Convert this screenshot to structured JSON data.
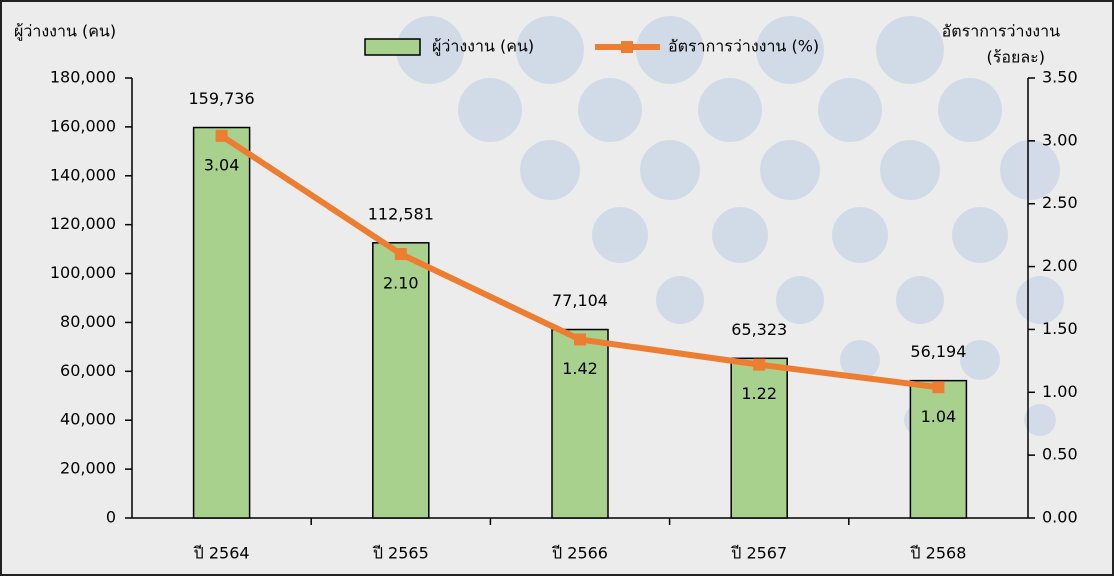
{
  "chart_data": {
    "type": "bar",
    "ylabel": "ผู้ว่างงาน (คน)",
    "y2label": [
      "อัตราการว่างงาน",
      "(ร้อยละ)"
    ],
    "categories": [
      "ปี 2564",
      "ปี 2565",
      "ปี 2566",
      "ปี 2567",
      "ปี 2568"
    ],
    "series": [
      {
        "name": "ผู้ว่างงาน (คน)",
        "type": "bar",
        "color": "#a9d18e",
        "values": [
          159736,
          112581,
          77104,
          65323,
          56194
        ],
        "value_labels": [
          "159,736",
          "112,581",
          "77,104",
          "65,323",
          "56,194"
        ]
      },
      {
        "name": "อัตราการว่างงาน (%)",
        "type": "line",
        "axis": "y2",
        "color": "#ed7d31",
        "values": [
          3.04,
          2.1,
          1.42,
          1.22,
          1.04
        ],
        "value_labels": [
          "3.04",
          "2.10",
          "1.42",
          "1.22",
          "1.04"
        ]
      }
    ],
    "ylim": [
      0,
      180000
    ],
    "yticks": [
      0,
      {
        "value": 20000,
        "label": "20,000"
      },
      {
        "value": 40000,
        "label": "40,000"
      },
      {
        "value": 60000,
        "label": "60,000"
      },
      {
        "value": 80000,
        "label": "80,000"
      },
      {
        "value": 100000,
        "label": "100,000"
      },
      {
        "value": 120000,
        "label": "120,000"
      },
      {
        "value": 140000,
        "label": "140,000"
      },
      {
        "value": 160000,
        "label": "160,000"
      },
      {
        "value": 180000,
        "label": "180,000"
      }
    ],
    "y2lim": [
      0,
      3.5
    ],
    "y2ticks": [
      {
        "value": 0,
        "label": "0.00"
      },
      {
        "value": 0.5,
        "label": "0.50"
      },
      {
        "value": 1,
        "label": "1.00"
      },
      {
        "value": 1.5,
        "label": "1.50"
      },
      {
        "value": 2,
        "label": "2.00"
      },
      {
        "value": 2.5,
        "label": "2.50"
      },
      {
        "value": 3,
        "label": "3.00"
      },
      {
        "value": 3.5,
        "label": "3.50"
      }
    ]
  }
}
